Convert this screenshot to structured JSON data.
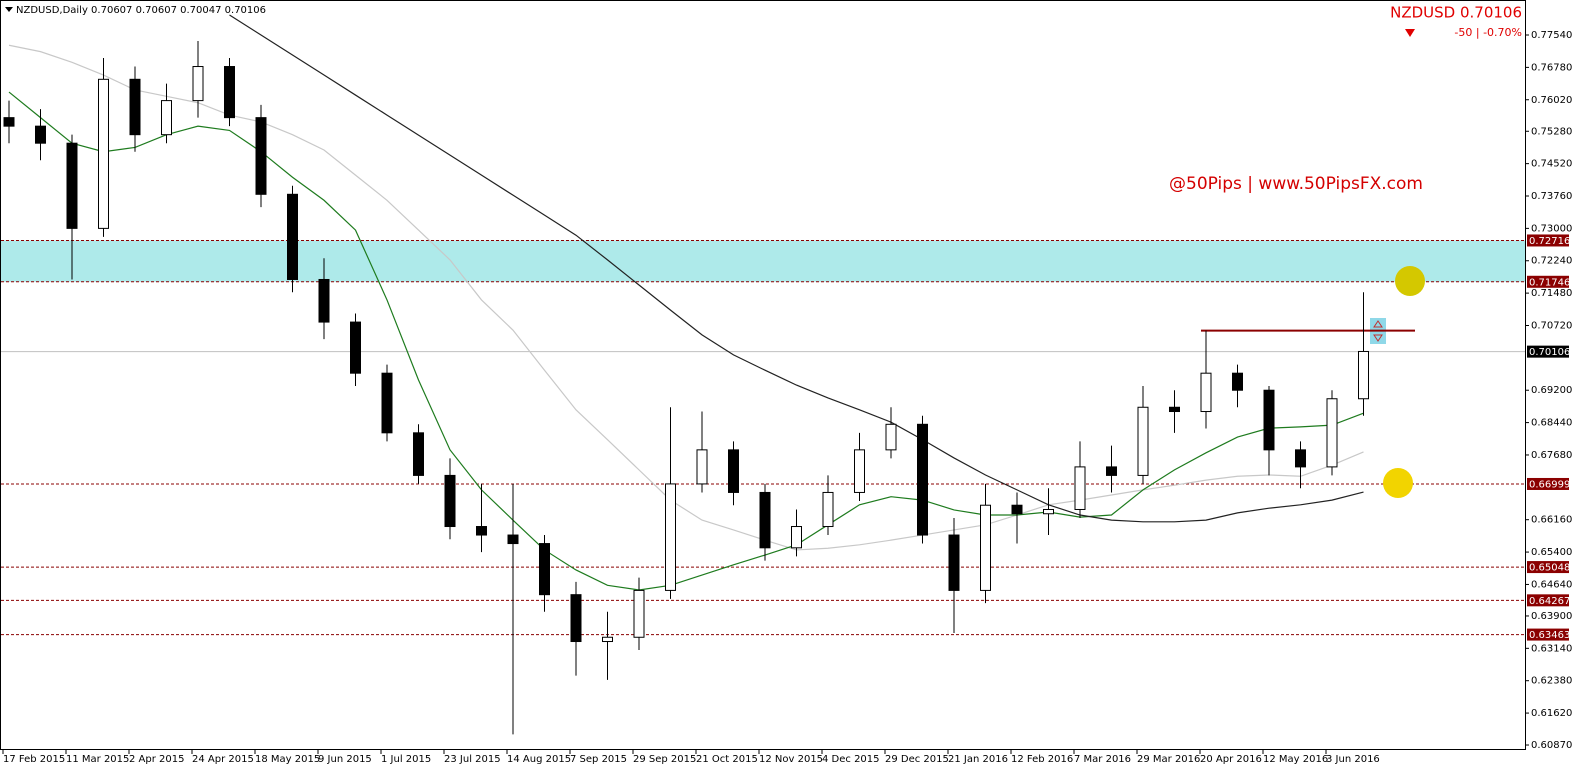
{
  "chart_data": {
    "type": "candlestick",
    "header": "NZDUSD,Daily  0.70607 0.70607 0.70047 0.70106",
    "symbol_price": "NZDUSD  0.70106",
    "change": "-50 | -0.70%",
    "watermark": "@50Pips | www.50PipsFX.com",
    "categories": [
      "17 Feb 2015",
      null,
      "11 Mar 2015",
      null,
      "2 Apr 2015",
      null,
      "24 Apr 2015",
      null,
      "18 May 2015",
      null,
      "9 Jun 2015",
      null,
      "1 Jul 2015",
      null,
      "23 Jul 2015",
      null,
      "14 Aug 2015",
      null,
      "7 Sep 2015",
      null,
      "29 Sep 2015",
      null,
      "21 Oct 2015",
      null,
      "12 Nov 2015",
      null,
      "4 Dec 2015",
      null,
      "29 Dec 2015",
      null,
      "21 Jan 2016",
      null,
      "12 Feb 2016",
      null,
      "7 Mar 2016",
      null,
      "29 Mar 2016",
      null,
      "20 Apr 2016",
      null,
      "12 May 2016",
      null,
      "3 Jun 2016",
      null
    ],
    "open": [
      0.756,
      0.754,
      0.75,
      0.73,
      0.765,
      0.752,
      0.76,
      0.768,
      0.756,
      0.738,
      0.718,
      0.708,
      0.696,
      0.682,
      0.672,
      0.66,
      0.658,
      0.656,
      0.644,
      0.633,
      0.634,
      0.645,
      0.67,
      0.678,
      0.668,
      0.655,
      0.66,
      0.668,
      0.678,
      0.684,
      0.658,
      0.645,
      0.665,
      0.663,
      0.664,
      0.674,
      0.672,
      0.688,
      0.687,
      0.696,
      0.692,
      0.678,
      0.674,
      0.69
    ],
    "high": [
      0.76,
      0.758,
      0.752,
      0.77,
      0.768,
      0.764,
      0.774,
      0.77,
      0.759,
      0.74,
      0.723,
      0.71,
      0.698,
      0.684,
      0.676,
      0.67,
      0.67,
      0.658,
      0.647,
      0.64,
      0.648,
      0.688,
      0.687,
      0.68,
      0.67,
      0.664,
      0.672,
      0.682,
      0.688,
      0.686,
      0.662,
      0.67,
      0.668,
      0.669,
      0.68,
      0.679,
      0.693,
      0.692,
      0.706,
      0.698,
      0.693,
      0.68,
      0.692,
      0.715
    ],
    "low": [
      0.75,
      0.746,
      0.718,
      0.728,
      0.748,
      0.75,
      0.756,
      0.754,
      0.735,
      0.715,
      0.704,
      0.693,
      0.68,
      0.67,
      0.657,
      0.654,
      0.6112,
      0.64,
      0.625,
      0.624,
      0.631,
      0.643,
      0.668,
      0.665,
      0.652,
      0.653,
      0.658,
      0.666,
      0.676,
      0.656,
      0.635,
      0.642,
      0.656,
      0.658,
      0.662,
      0.668,
      0.67,
      0.682,
      0.683,
      0.688,
      0.672,
      0.669,
      0.672,
      0.686
    ],
    "close": [
      0.754,
      0.75,
      0.73,
      0.765,
      0.752,
      0.76,
      0.768,
      0.756,
      0.738,
      0.718,
      0.708,
      0.696,
      0.682,
      0.672,
      0.66,
      0.658,
      0.656,
      0.644,
      0.633,
      0.634,
      0.645,
      0.67,
      0.678,
      0.668,
      0.655,
      0.66,
      0.668,
      0.678,
      0.684,
      0.658,
      0.645,
      0.665,
      0.663,
      0.664,
      0.674,
      0.672,
      0.688,
      0.687,
      0.696,
      0.692,
      0.678,
      0.674,
      0.69,
      0.7011
    ],
    "lines": [
      {
        "color": "#c8c8c8",
        "values": [
          0.773,
          0.7715,
          0.769,
          0.766,
          0.7625,
          0.761,
          0.7595,
          0.7566,
          0.755,
          0.752,
          0.7484,
          0.7425,
          0.7366,
          0.7296,
          0.7226,
          0.7132,
          0.7061,
          0.6967,
          0.6874,
          0.6804,
          0.6733,
          0.6662,
          0.6615,
          0.6592,
          0.6568,
          0.6545,
          0.6549,
          0.6557,
          0.6568,
          0.658,
          0.6592,
          0.6604,
          0.6627,
          0.6651,
          0.6662,
          0.6674,
          0.6686,
          0.6697,
          0.6709,
          0.6718,
          0.6721,
          0.6718,
          0.6744,
          0.6775
        ]
      },
      {
        "color": "#1e7b1e",
        "values": [
          0.762,
          0.756,
          0.75,
          0.748,
          0.749,
          0.752,
          0.754,
          0.753,
          0.748,
          0.742,
          0.7366,
          0.7296,
          0.7132,
          0.6944,
          0.678,
          0.6686,
          0.6615,
          0.6545,
          0.6498,
          0.6462,
          0.6451,
          0.6462,
          0.6486,
          0.651,
          0.6533,
          0.6557,
          0.6604,
          0.6651,
          0.667,
          0.6662,
          0.6639,
          0.6627,
          0.6627,
          0.6634,
          0.6622,
          0.6627,
          0.6686,
          0.6733,
          0.6773,
          0.681,
          0.6831,
          0.6834,
          0.6838,
          0.6866
        ]
      },
      {
        "color": "#222222",
        "values": [
          null,
          null,
          null,
          null,
          null,
          null,
          null,
          0.7801,
          0.7754,
          0.7707,
          0.766,
          0.7613,
          0.7566,
          0.7519,
          0.7472,
          0.7425,
          0.7378,
          0.7331,
          0.7284,
          0.7226,
          0.7167,
          0.7108,
          0.705,
          0.7003,
          0.6967,
          0.6932,
          0.6902,
          0.6874,
          0.6845,
          0.6804,
          0.6761,
          0.6721,
          0.6686,
          0.6651,
          0.6627,
          0.6615,
          0.6611,
          0.6611,
          0.6615,
          0.6632,
          0.6643,
          0.6651,
          0.6662,
          0.6681
        ]
      }
    ],
    "levels": [
      0.72716,
      0.71746,
      0.66999,
      0.65048,
      0.64267,
      0.63463
    ],
    "level_color": "#8b0000",
    "zone": [
      0.72716,
      0.71746
    ],
    "zone_color": "#aeeaea",
    "current_price": 0.70106,
    "resistance": 0.706,
    "ylim": [
      0.60753,
      0.78362
    ],
    "yticks": [
      {
        "value": 0.7754,
        "label": "0.77540"
      },
      {
        "value": 0.7678,
        "label": "0.76780"
      },
      {
        "value": 0.7602,
        "label": "0.76020"
      },
      {
        "value": 0.7528,
        "label": "0.75280"
      },
      {
        "value": 0.7452,
        "label": "0.74520"
      },
      {
        "value": 0.7376,
        "label": "0.73760"
      },
      {
        "value": 0.73,
        "label": "0.73000"
      },
      {
        "value": 0.7224,
        "label": "0.72240"
      },
      {
        "value": 0.7148,
        "label": "0.71480"
      },
      {
        "value": 0.7072,
        "label": "0.70720"
      },
      {
        "value": 0.692,
        "label": "0.69200"
      },
      {
        "value": 0.6844,
        "label": "0.68440"
      },
      {
        "value": 0.6768,
        "label": "0.67680"
      },
      {
        "value": 0.6616,
        "label": "0.66160"
      },
      {
        "value": 0.654,
        "label": "0.65400"
      },
      {
        "value": 0.6464,
        "label": "0.64640"
      },
      {
        "value": 0.639,
        "label": "0.63900"
      },
      {
        "value": 0.6314,
        "label": "0.63140"
      },
      {
        "value": 0.6238,
        "label": "0.62380"
      },
      {
        "value": 0.6162,
        "label": "0.61620"
      },
      {
        "value": 0.6087,
        "label": "0.60870"
      }
    ]
  }
}
